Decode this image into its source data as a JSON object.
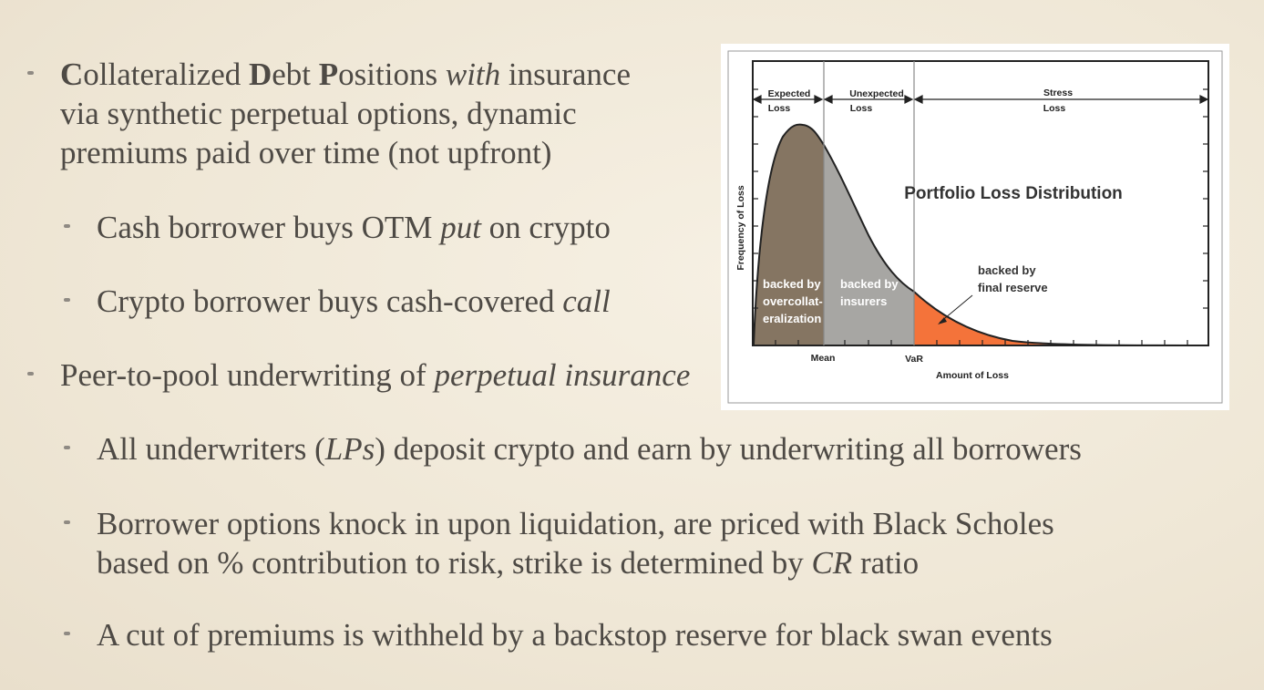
{
  "bullets": {
    "b1": {
      "c": "C",
      "ollateralized": "ollateralized ",
      "d": "D",
      "ebt": "ebt ",
      "p": "P",
      "ositions": "ositions ",
      "with": "with",
      "rest_line1": " insurance",
      "line2": "via synthetic perpetual options, dynamic",
      "line3": "premiums paid over time (not upfront)"
    },
    "b2": {
      "pre": "Cash borrower buys OTM ",
      "em": "put",
      "post": " on crypto"
    },
    "b3": {
      "pre": "Crypto borrower buys cash-covered ",
      "em": "call"
    },
    "b4": {
      "pre": "Peer-to-pool underwriting of ",
      "em": "perpetual insurance"
    },
    "b5": {
      "pre": "All underwriters (",
      "em": "LPs",
      "post": ") deposit crypto and earn by underwriting all borrowers"
    },
    "b6": {
      "line1": "Borrower options knock in upon liquidation, are priced with Black Scholes",
      "pre2": "based on % contribution to risk, strike is determined by ",
      "em": "CR",
      "post2": " ratio"
    },
    "b7": {
      "text": "A cut of premiums is withheld by a backstop reserve for black swan events"
    }
  },
  "figure": {
    "title": "Portfolio Loss Distribution",
    "ylabel": "Frequency of Loss",
    "xlabel": "Amount of Loss",
    "tick_mean": "Mean",
    "tick_var": "VaR",
    "region_expected_1": "Expected",
    "region_expected_2": "Loss",
    "region_unexpected_1": "Unexpected",
    "region_unexpected_2": "Loss",
    "region_stress_1": "Stress",
    "region_stress_2": "Loss",
    "label_overcollat_1": "backed by",
    "label_overcollat_2": "overcollat-",
    "label_overcollat_3": "eralization",
    "label_insurers_1": "backed by",
    "label_insurers_2": "insurers",
    "label_reserve_1": "backed by",
    "label_reserve_2": "final reserve",
    "colors": {
      "expected": "#857562",
      "unexpected": "#a7a6a3",
      "stress": "#f4733a"
    }
  }
}
